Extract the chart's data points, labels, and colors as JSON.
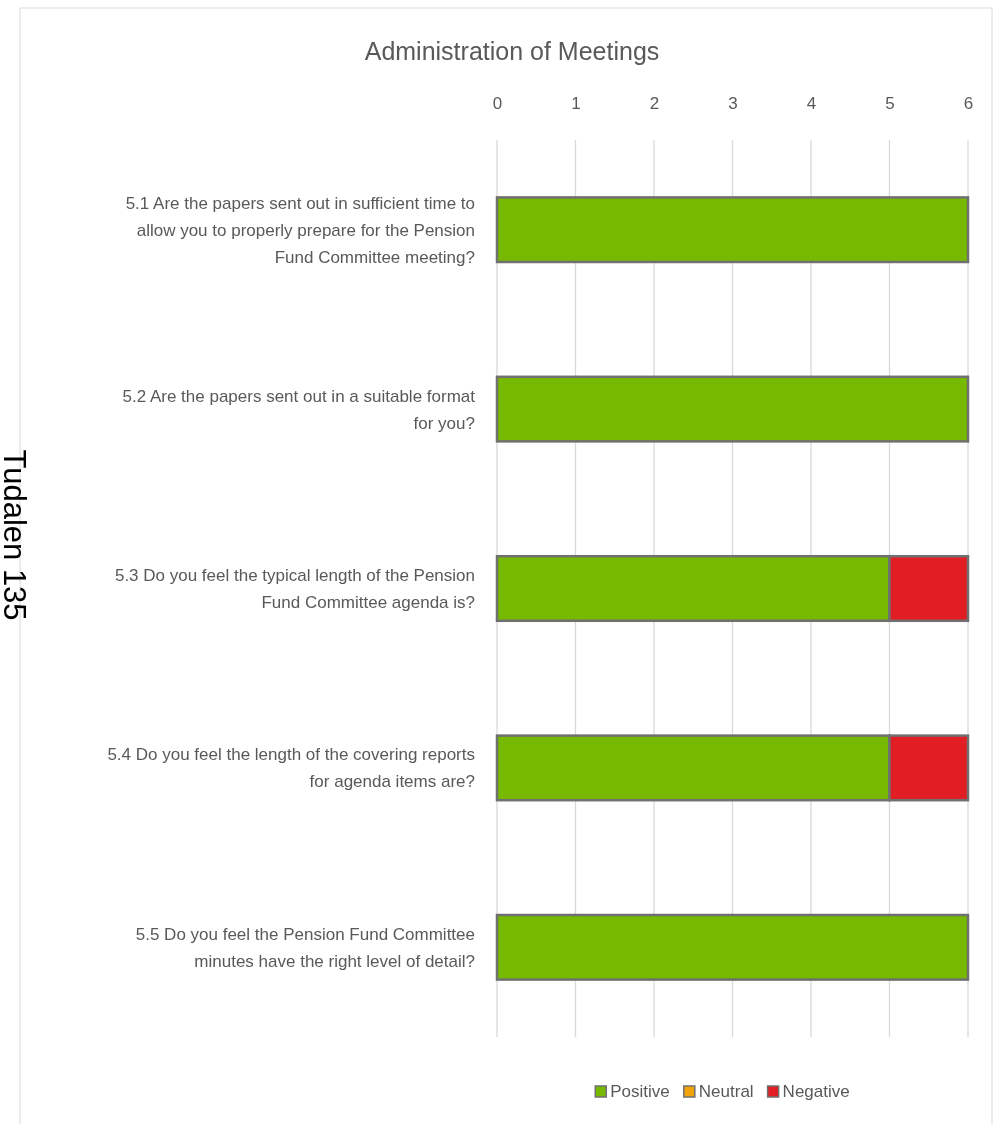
{
  "chart_data": {
    "type": "bar",
    "orientation": "horizontal",
    "stacked": true,
    "title": "Administration of Meetings",
    "categories": [
      "5.1 Are the papers sent out in sufficient time to allow you to properly prepare for the Pension Fund Committee meeting?",
      "5.2 Are the papers sent out in a suitable format for you?",
      "5.3 Do you feel the typical length of the Pension Fund Committee agenda is?",
      "5.4 Do you feel the length of the covering reports for agenda items are?",
      "5.5 Do you feel the Pension Fund Committee minutes have the right level of detail?"
    ],
    "series": [
      {
        "name": "Positive",
        "color": "#76b900",
        "values": [
          6,
          6,
          5,
          5,
          6
        ]
      },
      {
        "name": "Neutral",
        "color": "#f0a30a",
        "values": [
          0,
          0,
          0,
          0,
          0
        ]
      },
      {
        "name": "Negative",
        "color": "#e01e24",
        "values": [
          0,
          0,
          1,
          1,
          0
        ]
      }
    ],
    "xlim": [
      0,
      6
    ],
    "xticks": [
      0,
      1,
      2,
      3,
      4,
      5,
      6
    ],
    "grid": "x",
    "legend": "bottom",
    "annotations": [
      "Tudalen 135"
    ]
  }
}
